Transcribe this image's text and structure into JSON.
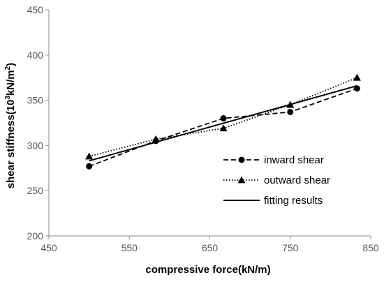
{
  "chart_data": {
    "type": "line",
    "title": "",
    "xlabel": "compressive force(kN/m)",
    "ylabel_main": "shear stiffness(10",
    "ylabel_sup": "3",
    "ylabel_mid": "kN/m",
    "ylabel_sup2": "2",
    "ylabel_end": ")",
    "xlim": [
      450,
      850
    ],
    "ylim": [
      200,
      450
    ],
    "xticks": [
      450,
      550,
      650,
      750,
      850
    ],
    "yticks": [
      200,
      250,
      300,
      350,
      400,
      450
    ],
    "grid": false,
    "legend_position": "bottom-right",
    "series": [
      {
        "name": "inward shear",
        "marker": "circle",
        "line_style": "dashed",
        "color": "#000000",
        "x": [
          500,
          583,
          667,
          750,
          833
        ],
        "y": [
          277,
          305,
          330,
          337,
          363
        ]
      },
      {
        "name": "outward shear",
        "marker": "triangle",
        "line_style": "dotted",
        "color": "#000000",
        "x": [
          500,
          583,
          667,
          750,
          833
        ],
        "y": [
          288,
          307,
          319,
          345,
          375
        ]
      },
      {
        "name": "fitting results",
        "marker": "none",
        "line_style": "solid",
        "color": "#000000",
        "x": [
          500,
          833
        ],
        "y": [
          283,
          366
        ]
      }
    ]
  }
}
